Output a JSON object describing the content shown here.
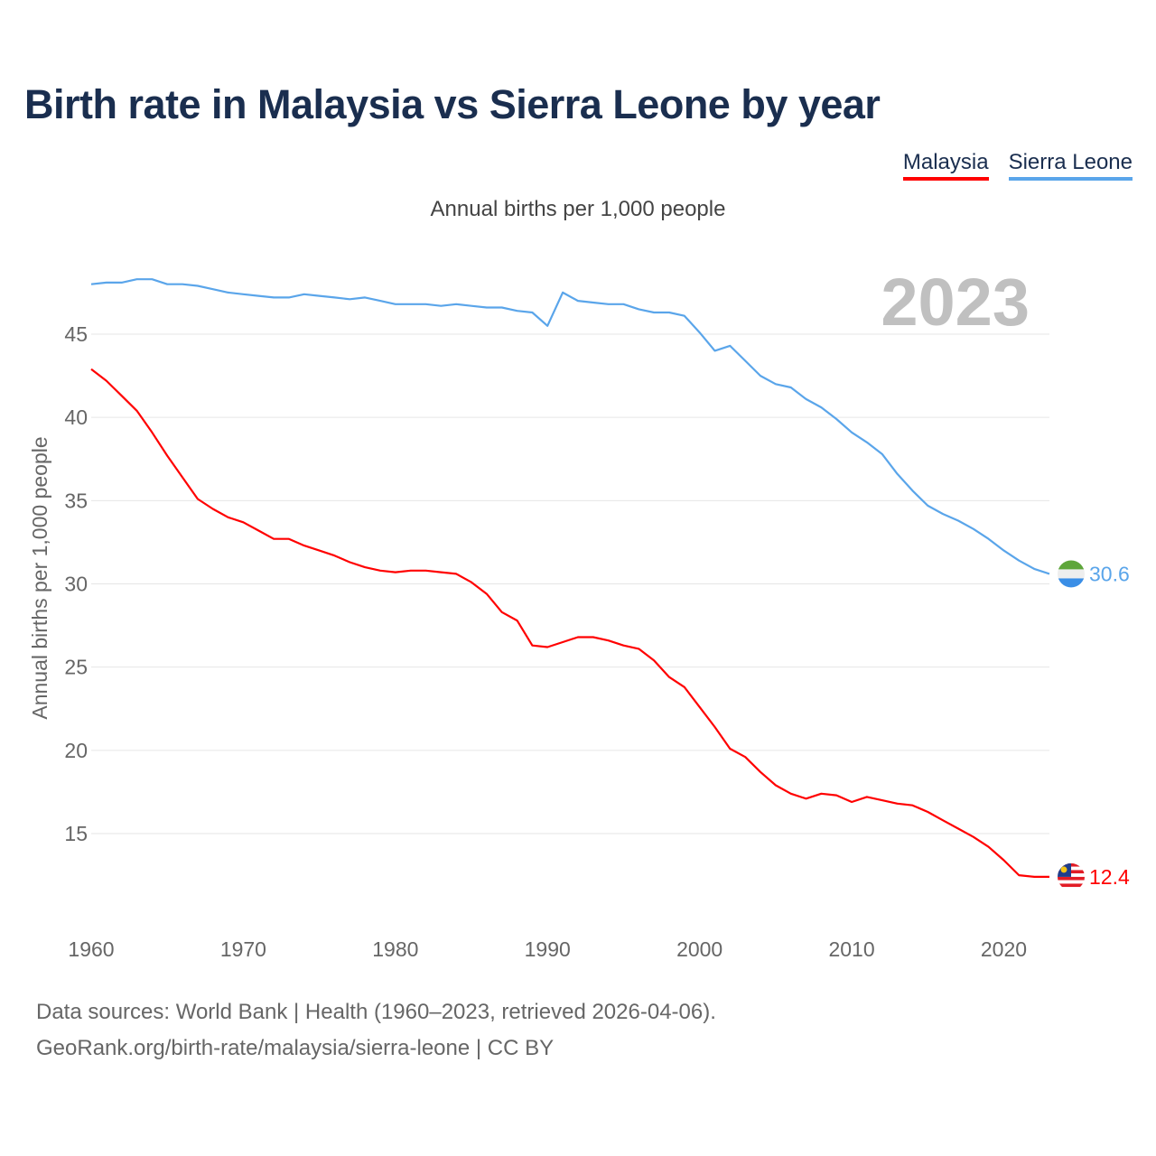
{
  "title": "Birth rate in Malaysia vs Sierra Leone by year",
  "subtitle": "Annual births per 1,000 people",
  "year_label": "2023",
  "source_line1": "Data sources: World Bank | Health (1960–2023, retrieved 2026-04-06).",
  "source_line2": "GeoRank.org/birth-rate/malaysia/sierra-leone | CC BY",
  "chart_data": {
    "type": "line",
    "title": "Birth rate in Malaysia vs Sierra Leone by year",
    "xlabel": "",
    "ylabel": "Annual births per 1,000 people",
    "xlim": [
      1960,
      2023
    ],
    "ylim": [
      10,
      48.5
    ],
    "grid": true,
    "legend_position": "top-right",
    "x_ticks": [
      1960,
      1970,
      1980,
      1990,
      2000,
      2010,
      2020
    ],
    "y_ticks": [
      15,
      20,
      25,
      30,
      35,
      40,
      45
    ],
    "x": [
      1960,
      1961,
      1962,
      1963,
      1964,
      1965,
      1966,
      1967,
      1968,
      1969,
      1970,
      1971,
      1972,
      1973,
      1974,
      1975,
      1976,
      1977,
      1978,
      1979,
      1980,
      1981,
      1982,
      1983,
      1984,
      1985,
      1986,
      1987,
      1988,
      1989,
      1990,
      1991,
      1992,
      1993,
      1994,
      1995,
      1996,
      1997,
      1998,
      1999,
      2000,
      2001,
      2002,
      2003,
      2004,
      2005,
      2006,
      2007,
      2008,
      2009,
      2010,
      2011,
      2012,
      2013,
      2014,
      2015,
      2016,
      2017,
      2018,
      2019,
      2020,
      2021,
      2022,
      2023
    ],
    "series": [
      {
        "name": "Malaysia",
        "color": "#ff0000",
        "end_label": "12.4",
        "values": [
          42.9,
          42.2,
          41.3,
          40.4,
          39.1,
          37.7,
          36.4,
          35.1,
          34.5,
          34.0,
          33.7,
          33.2,
          32.7,
          32.7,
          32.3,
          32.0,
          31.7,
          31.3,
          31.0,
          30.8,
          30.7,
          30.8,
          30.8,
          30.7,
          30.6,
          30.1,
          29.4,
          28.3,
          27.8,
          26.3,
          26.2,
          26.5,
          26.8,
          26.8,
          26.6,
          26.3,
          26.1,
          25.4,
          24.4,
          23.8,
          22.6,
          21.4,
          20.1,
          19.6,
          18.7,
          17.9,
          17.4,
          17.1,
          17.4,
          17.3,
          16.9,
          17.2,
          17.0,
          16.8,
          16.7,
          16.3,
          15.8,
          15.3,
          14.8,
          14.2,
          13.4,
          12.5,
          12.4,
          12.4
        ]
      },
      {
        "name": "Sierra Leone",
        "color": "#5aa5ea",
        "end_label": "30.6",
        "values": [
          48.0,
          48.1,
          48.1,
          48.3,
          48.3,
          48.0,
          48.0,
          47.9,
          47.7,
          47.5,
          47.4,
          47.3,
          47.2,
          47.2,
          47.4,
          47.3,
          47.2,
          47.1,
          47.2,
          47.0,
          46.8,
          46.8,
          46.8,
          46.7,
          46.8,
          46.7,
          46.6,
          46.6,
          46.4,
          46.3,
          45.5,
          47.5,
          47.0,
          46.9,
          46.8,
          46.8,
          46.5,
          46.3,
          46.3,
          46.1,
          45.1,
          44.0,
          44.3,
          43.4,
          42.5,
          42.0,
          41.8,
          41.1,
          40.6,
          39.9,
          39.1,
          38.5,
          37.8,
          36.6,
          35.6,
          34.7,
          34.2,
          33.8,
          33.3,
          32.7,
          32.0,
          31.4,
          30.9,
          30.6
        ]
      }
    ]
  }
}
